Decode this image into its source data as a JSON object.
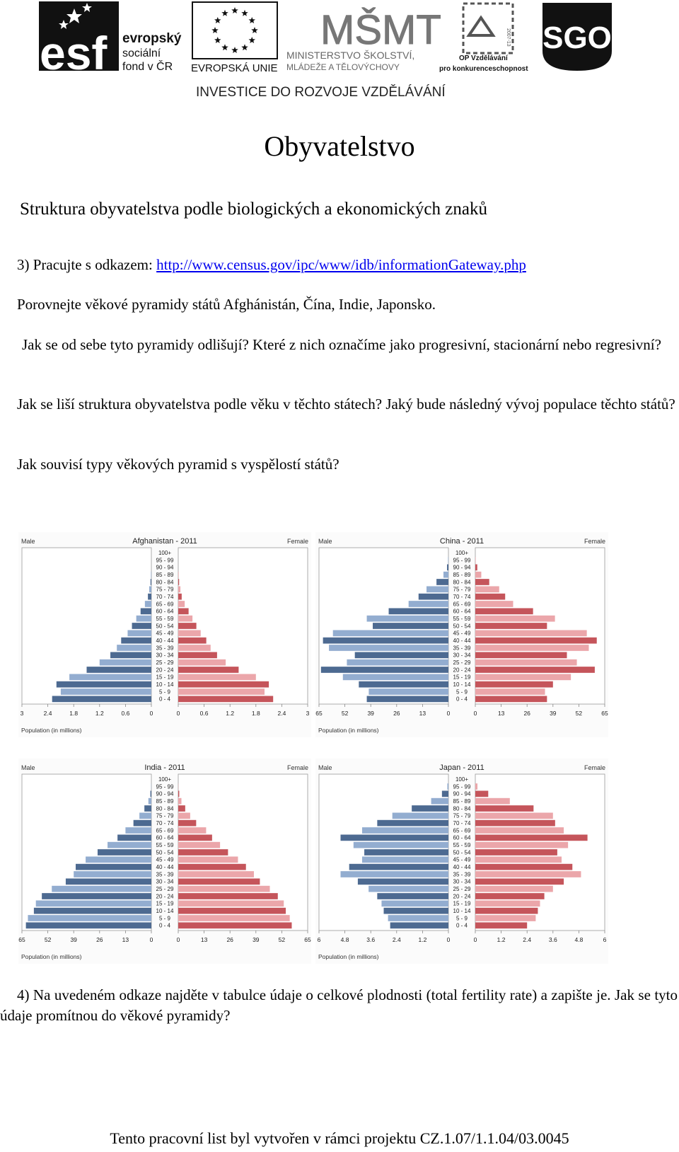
{
  "header": {
    "esf": {
      "lines": [
        "evropský",
        "sociální",
        "fond v ČR"
      ],
      "mark": "esf"
    },
    "eu": {
      "label": "EVROPSKÁ UNIE"
    },
    "msmt": {
      "mark": "MŠMT",
      "lines": [
        "MINISTERSTVO ŠKOLSTVÍ,",
        "MLÁDEŽE A TĚLOVÝCHOVY"
      ]
    },
    "op": {
      "lines": [
        "OP Vzdělávání",
        "pro konkurenceschopnost"
      ],
      "years": "2007-13"
    },
    "sgo": {
      "mark": "SGO"
    },
    "tagline": "INVESTICE DO ROZVOJE VZDĚLÁVÁNÍ"
  },
  "title": "Obyvatelstvo",
  "subtitle": "Struktura obyvatelstva podle biologických a ekonomických znaků",
  "task3": {
    "prefix": "3) Pracujte s odkazem: ",
    "link": "http://www.census.gov/ipc/www/idb/informationGateway.php",
    "p1": "Porovnejte věkové pyramidy států Afghánistán, Čína, Indie, Japonsko.",
    "p2": "Jak se od sebe tyto pyramidy odlišují? Které z nich označíme jako progresivní, stacionární nebo regresivní?",
    "p3": "Jak se liší struktura obyvatelstva podle věku v těchto státech? Jaký bude následný vývoj populace těchto států?",
    "p4": "Jak souvisí typy věkových pyramid s vyspělostí států?"
  },
  "task4": {
    "text": "4) Na uvedeném odkaze najděte v tabulce údaje o celkové plodnosti (total fertility rate) a zapište je. Jak se tyto údaje promítnou do věkové pyramidy?"
  },
  "footer": "Tento pracovní list byl vytvořen v rámci projektu CZ.1.07/1.1.04/03.0045",
  "chart_data": [
    {
      "type": "bar",
      "title": "Afghanistan - 2011",
      "male_label": "Male",
      "female_label": "Female",
      "xlabel": "Population (in millions)",
      "categories": [
        "0 - 4",
        "5 - 9",
        "10 - 14",
        "15 - 19",
        "20 - 24",
        "25 - 29",
        "30 - 34",
        "35 - 39",
        "40 - 44",
        "45 - 49",
        "50 - 54",
        "55 - 59",
        "60 - 64",
        "65 - 69",
        "70 - 74",
        "75 - 79",
        "80 - 84",
        "85 - 89",
        "90 - 94",
        "95 - 99",
        "100+"
      ],
      "xlim": [
        0,
        3
      ],
      "ticks": [
        "3",
        "2.4",
        "1.8",
        "1.2",
        "0.6",
        "0",
        "0",
        "0.6",
        "1.2",
        "1.8",
        "2.4",
        "3"
      ],
      "series": [
        {
          "name": "Male",
          "color": "#4d6a91",
          "alt_color": "#93add0",
          "values": [
            2.3,
            2.1,
            2.2,
            1.9,
            1.5,
            1.2,
            0.95,
            0.8,
            0.7,
            0.55,
            0.45,
            0.35,
            0.25,
            0.15,
            0.08,
            0.05,
            0.02,
            0.01,
            0,
            0,
            0
          ]
        },
        {
          "name": "Female",
          "color": "#c5555b",
          "alt_color": "#eba6aa",
          "values": [
            2.2,
            2.0,
            2.1,
            1.8,
            1.4,
            1.1,
            0.9,
            0.75,
            0.65,
            0.52,
            0.42,
            0.33,
            0.24,
            0.15,
            0.08,
            0.05,
            0.02,
            0.01,
            0,
            0,
            0
          ]
        }
      ]
    },
    {
      "type": "bar",
      "title": "China - 2011",
      "male_label": "Male",
      "female_label": "Female",
      "xlabel": "Population (in millions)",
      "categories": [
        "0 - 4",
        "5 - 9",
        "10 - 14",
        "15 - 19",
        "20 - 24",
        "25 - 29",
        "30 - 34",
        "35 - 39",
        "40 - 44",
        "45 - 49",
        "50 - 54",
        "55 - 59",
        "60 - 64",
        "65 - 69",
        "70 - 74",
        "75 - 79",
        "80 - 84",
        "85 - 89",
        "90 - 94",
        "95 - 99",
        "100+"
      ],
      "xlim": [
        0,
        65
      ],
      "ticks": [
        "65",
        "52",
        "39",
        "26",
        "13",
        "0",
        "0",
        "13",
        "26",
        "39",
        "52",
        "65"
      ],
      "series": [
        {
          "name": "Male",
          "color": "#4d6a91",
          "alt_color": "#93add0",
          "values": [
            41,
            40,
            45,
            53,
            64,
            51,
            47,
            60,
            63,
            58,
            38,
            41,
            30,
            20,
            15,
            11,
            6,
            2.5,
            0.7,
            0.2,
            0
          ]
        },
        {
          "name": "Female",
          "color": "#c5555b",
          "alt_color": "#eba6aa",
          "values": [
            36,
            35,
            39,
            48,
            60,
            51,
            46,
            57,
            61,
            56,
            36,
            40,
            29,
            19,
            15,
            12,
            7,
            3,
            1,
            0.2,
            0
          ]
        }
      ]
    },
    {
      "type": "bar",
      "title": "India - 2011",
      "male_label": "Male",
      "female_label": "Female",
      "xlabel": "Population (in millions)",
      "categories": [
        "0 - 4",
        "5 - 9",
        "10 - 14",
        "15 - 19",
        "20 - 24",
        "25 - 29",
        "30 - 34",
        "35 - 39",
        "40 - 44",
        "45 - 49",
        "50 - 54",
        "55 - 59",
        "60 - 64",
        "65 - 69",
        "70 - 74",
        "75 - 79",
        "80 - 84",
        "85 - 89",
        "90 - 94",
        "95 - 99",
        "100+"
      ],
      "xlim": [
        0,
        65
      ],
      "ticks": [
        "65",
        "52",
        "39",
        "26",
        "13",
        "0",
        "0",
        "13",
        "26",
        "39",
        "52",
        "65"
      ],
      "series": [
        {
          "name": "Male",
          "color": "#4d6a91",
          "alt_color": "#93add0",
          "values": [
            63,
            62,
            59,
            58,
            55,
            50,
            43,
            39,
            38,
            33,
            27,
            22,
            17,
            13,
            9,
            6,
            3.5,
            1.5,
            0.5,
            0.1,
            0
          ]
        },
        {
          "name": "Female",
          "color": "#c5555b",
          "alt_color": "#eba6aa",
          "values": [
            57,
            56,
            54,
            53,
            50,
            46,
            41,
            38,
            34,
            30,
            25,
            21,
            17,
            14,
            9,
            6,
            3.5,
            1.6,
            0.5,
            0.1,
            0
          ]
        }
      ]
    },
    {
      "type": "bar",
      "title": "Japan - 2011",
      "male_label": "Male",
      "female_label": "Female",
      "xlabel": "Population (in millions)",
      "categories": [
        "0 - 4",
        "5 - 9",
        "10 - 14",
        "15 - 19",
        "20 - 24",
        "25 - 29",
        "30 - 34",
        "35 - 39",
        "40 - 44",
        "45 - 49",
        "50 - 54",
        "55 - 59",
        "60 - 64",
        "65 - 69",
        "70 - 74",
        "75 - 79",
        "80 - 84",
        "85 - 89",
        "90 - 94",
        "95 - 99",
        "100+"
      ],
      "xlim": [
        0,
        6
      ],
      "ticks": [
        "6",
        "4.8",
        "3.6",
        "2.4",
        "1.2",
        "0",
        "0",
        "1.2",
        "2.4",
        "3.6",
        "4.8",
        "6"
      ],
      "series": [
        {
          "name": "Male",
          "color": "#4d6a91",
          "alt_color": "#93add0",
          "values": [
            2.7,
            2.8,
            3.0,
            3.1,
            3.3,
            3.7,
            4.2,
            5.0,
            4.6,
            4.0,
            3.9,
            4.4,
            5.0,
            4.0,
            3.3,
            2.6,
            1.7,
            0.8,
            0.3,
            0.05,
            0
          ]
        },
        {
          "name": "Female",
          "color": "#c5555b",
          "alt_color": "#eba6aa",
          "values": [
            2.4,
            2.8,
            2.9,
            3.0,
            3.2,
            3.6,
            4.1,
            4.9,
            4.5,
            4.0,
            3.8,
            4.3,
            5.2,
            4.1,
            3.7,
            3.6,
            2.7,
            1.6,
            0.6,
            0.1,
            0
          ]
        }
      ]
    }
  ]
}
